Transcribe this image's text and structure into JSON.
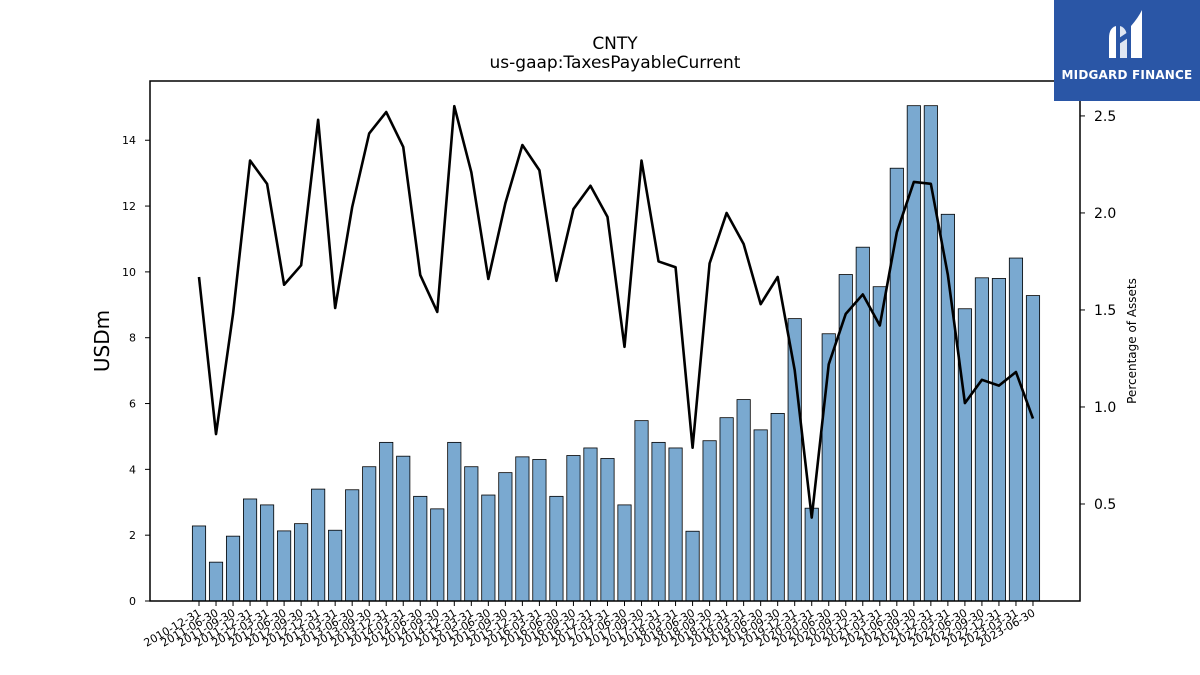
{
  "chart_data": {
    "type": "bar",
    "title": "CNTY",
    "subtitle": "us-gaap:TaxesPayableCurrent",
    "ylabel": "USDm",
    "y2label": "Percentage of Assets",
    "ylim": [
      0,
      15.8
    ],
    "y2lim": [
      0,
      2.68
    ],
    "yticks": [
      0,
      2,
      4,
      6,
      8,
      10,
      12,
      14
    ],
    "y2ticks": [
      0.5,
      1.0,
      1.5,
      2.0,
      2.5
    ],
    "categories": [
      "2010-12-31",
      "2011-06-30",
      "2011-09-30",
      "2011-12-31",
      "2012-03-31",
      "2012-06-30",
      "2012-09-30",
      "2012-12-31",
      "2013-03-31",
      "2013-06-30",
      "2013-09-30",
      "2013-12-31",
      "2014-03-31",
      "2014-06-30",
      "2014-09-30",
      "2014-12-31",
      "2015-03-31",
      "2015-06-30",
      "2015-09-30",
      "2015-12-31",
      "2016-03-31",
      "2016-06-30",
      "2016-09-30",
      "2016-12-31",
      "2017-03-31",
      "2017-06-30",
      "2017-09-30",
      "2017-12-31",
      "2018-03-31",
      "2018-06-30",
      "2018-09-30",
      "2018-12-31",
      "2019-03-31",
      "2019-06-30",
      "2019-09-30",
      "2019-12-31",
      "2020-03-31",
      "2020-06-30",
      "2020-09-30",
      "2020-12-31",
      "2021-03-31",
      "2021-06-30",
      "2021-09-30",
      "2021-12-31",
      "2022-03-31",
      "2022-06-30",
      "2022-09-30",
      "2022-12-31",
      "2023-03-31",
      "2023-06-30"
    ],
    "series": [
      {
        "axis": "left",
        "type": "bar",
        "color": "#7aa9d0",
        "values": [
          2.28,
          1.18,
          1.97,
          3.1,
          2.92,
          2.13,
          2.35,
          3.4,
          2.15,
          3.38,
          4.08,
          4.82,
          4.4,
          3.18,
          2.8,
          4.82,
          4.08,
          3.22,
          3.9,
          4.38,
          4.3,
          3.18,
          4.42,
          4.65,
          4.33,
          2.92,
          5.48,
          4.82,
          4.65,
          2.12,
          4.87,
          5.57,
          6.12,
          5.2,
          5.7,
          8.58,
          2.82,
          8.12,
          9.92,
          10.75,
          9.55,
          13.15,
          15.05,
          15.05,
          11.75,
          8.88,
          9.82,
          9.8,
          10.42,
          9.28
        ]
      },
      {
        "axis": "right",
        "type": "line",
        "color": "#000000",
        "values": [
          1.67,
          0.86,
          1.48,
          2.27,
          2.15,
          1.63,
          1.73,
          2.48,
          1.51,
          2.03,
          2.41,
          2.52,
          2.34,
          1.68,
          1.49,
          2.55,
          2.21,
          1.66,
          2.05,
          2.35,
          2.22,
          1.65,
          2.02,
          2.14,
          1.98,
          1.31,
          2.27,
          1.75,
          1.72,
          0.79,
          1.74,
          2.0,
          1.84,
          1.53,
          1.67,
          1.19,
          0.43,
          1.22,
          1.48,
          1.58,
          1.42,
          1.9,
          2.16,
          2.15,
          1.68,
          1.02,
          1.14,
          1.11,
          1.18,
          0.94
        ]
      }
    ]
  },
  "logo": {
    "text": "MIDGARD FINANCE",
    "color": "#2a56a6"
  }
}
